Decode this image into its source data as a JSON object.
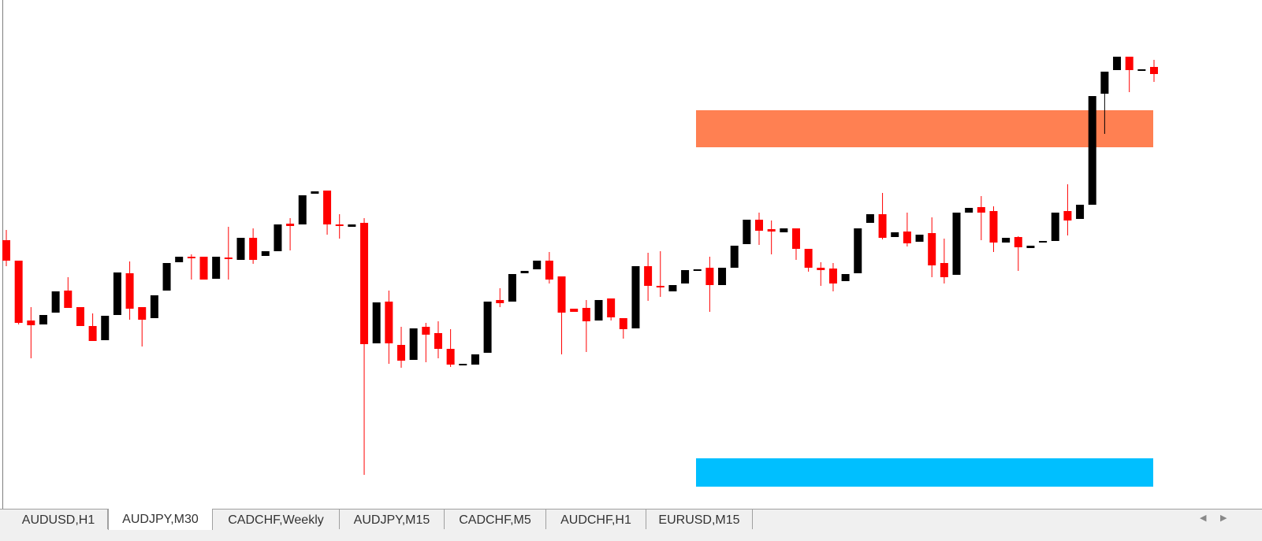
{
  "chart_data": {
    "type": "candlestick",
    "open": [
      340,
      314,
      238,
      233,
      248,
      276,
      255,
      231,
      213,
      245,
      298,
      255,
      241,
      276,
      312,
      319,
      319,
      291,
      318,
      315,
      343,
      320,
      326,
      361,
      360,
      399,
      403,
      360,
      357,
      362,
      209,
      262,
      207,
      188,
      230,
      222,
      202,
      181,
      182,
      197,
      264,
      262,
      298,
      303,
      314,
      294,
      253,
      254,
      238,
      266,
      241,
      228,
      307,
      282,
      275,
      285,
      301,
      305,
      283,
      305,
      335,
      366,
      354,
      350,
      355,
      329,
      305,
      304,
      288,
      298,
      362,
      373,
      344,
      351,
      338,
      349,
      311,
      296,
      375,
      382,
      377,
      337,
      344,
      330,
      337,
      339,
      377,
      367,
      385,
      526,
      556,
      573,
      555,
      560
    ],
    "high": [
      353,
      314,
      255,
      245,
      275,
      293,
      255,
      247,
      244,
      299,
      313,
      255,
      270,
      311,
      319,
      322,
      319,
      319,
      357,
      343,
      355,
      326,
      360,
      368,
      397,
      402,
      403,
      373,
      360,
      368,
      261,
      276,
      230,
      228,
      235,
      237,
      227,
      183,
      195,
      262,
      279,
      297,
      301,
      314,
      325,
      294,
      253,
      264,
      264,
      266,
      241,
      307,
      324,
      326,
      283,
      302,
      303,
      319,
      305,
      333,
      366,
      375,
      365,
      355,
      355,
      329,
      312,
      311,
      297,
      355,
      373,
      400,
      350,
      375,
      347,
      369,
      342,
      375,
      381,
      396,
      383,
      343,
      345,
      333,
      339,
      375,
      411,
      385,
      523,
      554,
      573,
      573,
      557,
      569
    ],
    "low": [
      307,
      233,
      190,
      233,
      248,
      254,
      231,
      212,
      213,
      245,
      239,
      205,
      241,
      276,
      312,
      290,
      290,
      291,
      290,
      315,
      310,
      320,
      326,
      327,
      360,
      399,
      347,
      342,
      357,
      42,
      209,
      183,
      178,
      188,
      185,
      190,
      179,
      181,
      182,
      197,
      255,
      262,
      298,
      303,
      285,
      195,
      249,
      198,
      238,
      238,
      215,
      228,
      263,
      268,
      275,
      285,
      301,
      249,
      283,
      305,
      335,
      334,
      322,
      350,
      315,
      300,
      282,
      275,
      288,
      298,
      362,
      341,
      344,
      332,
      338,
      293,
      285,
      296,
      375,
      340,
      325,
      337,
      301,
      330,
      337,
      339,
      346,
      367,
      385,
      475,
      556,
      528,
      555,
      541
    ],
    "close": [
      314,
      235,
      232,
      245,
      275,
      254,
      231,
      212,
      244,
      299,
      253,
      239,
      270,
      311,
      319,
      317,
      290,
      319,
      316,
      343,
      315,
      326,
      360,
      358,
      397,
      402,
      360,
      358,
      360,
      208,
      261,
      209,
      187,
      228,
      220,
      202,
      182,
      183,
      195,
      262,
      260,
      297,
      301,
      314,
      290,
      248,
      249,
      237,
      264,
      242,
      227,
      307,
      282,
      280,
      283,
      302,
      303,
      283,
      305,
      333,
      366,
      352,
      351,
      355,
      329,
      305,
      302,
      285,
      297,
      355,
      373,
      343,
      350,
      336,
      347,
      308,
      293,
      375,
      381,
      375,
      337,
      343,
      331,
      333,
      339,
      375,
      365,
      385,
      523,
      554,
      573,
      556,
      557,
      551
    ],
    "up_color": "#000000",
    "down_color": "#ff0000",
    "ylim": [
      0,
      645
    ],
    "zones": [
      {
        "high": 505,
        "low": 458,
        "color": "#ff8052"
      },
      {
        "high": 63,
        "low": 27,
        "color": "#00bfff"
      }
    ]
  },
  "tabs": [
    "AUDUSD,H1",
    "AUDJPY,M30",
    "CADCHF,Weekly",
    "AUDJPY,M15",
    "CADCHF,M5",
    "AUDCHF,H1",
    "EURUSD,M15"
  ],
  "active_tab": 1
}
